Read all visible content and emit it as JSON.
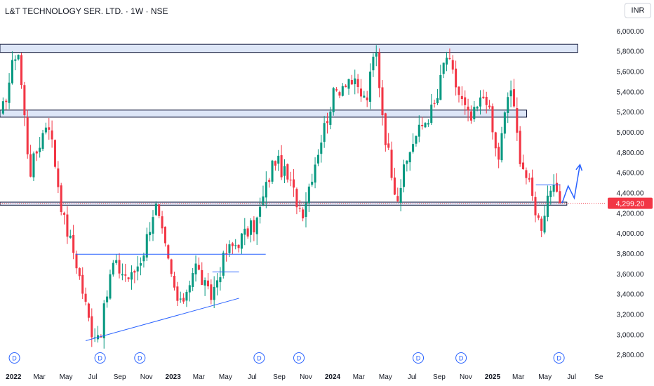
{
  "header": {
    "symbol_title": "L&T TECHNOLOGY SER. LTD. · 1W · NSE",
    "currency": "INR"
  },
  "colors": {
    "up": "#089981",
    "down": "#f23645",
    "zone_fill": "#dde6f7",
    "zone_stroke": "#0d1538",
    "trendline": "#2962ff",
    "last_price": "#f23645",
    "dividend_marker": "#2962ff"
  },
  "chart_data": {
    "type": "candlestick",
    "instrument": "L&T TECHNOLOGY SER. LTD.",
    "interval": "1W",
    "exchange": "NSE",
    "y_range": [
      2770,
      6100
    ],
    "y_ticks": [
      2800,
      3000,
      3200,
      3400,
      3600,
      3800,
      4000,
      4200,
      4400,
      4600,
      4800,
      5000,
      5200,
      5400,
      5600,
      5800,
      6000
    ],
    "y_tick_labels": [
      "2,800.00",
      "3,000.00",
      "3,200.00",
      "3,400.00",
      "3,600.00",
      "3,800.00",
      "4,000.00",
      "4,200.00",
      "4,400.00",
      "4,600.00",
      "4,800.00",
      "5,000.00",
      "5,200.00",
      "5,400.00",
      "5,600.00",
      "5,800.00",
      "6,000.00"
    ],
    "x_range": [
      "2021-12-01",
      "2025-09-15"
    ],
    "x_ticks": [
      {
        "date": "2022-01-01",
        "label": "2022",
        "bold": true
      },
      {
        "date": "2022-03-01",
        "label": "Mar",
        "bold": false
      },
      {
        "date": "2022-05-01",
        "label": "May",
        "bold": false
      },
      {
        "date": "2022-07-01",
        "label": "Jul",
        "bold": false
      },
      {
        "date": "2022-09-01",
        "label": "Sep",
        "bold": false
      },
      {
        "date": "2022-11-01",
        "label": "Nov",
        "bold": false
      },
      {
        "date": "2023-01-01",
        "label": "2023",
        "bold": true
      },
      {
        "date": "2023-03-01",
        "label": "Mar",
        "bold": false
      },
      {
        "date": "2023-05-01",
        "label": "May",
        "bold": false
      },
      {
        "date": "2023-07-01",
        "label": "Jul",
        "bold": false
      },
      {
        "date": "2023-09-01",
        "label": "Sep",
        "bold": false
      },
      {
        "date": "2023-11-01",
        "label": "Nov",
        "bold": false
      },
      {
        "date": "2024-01-01",
        "label": "2024",
        "bold": true
      },
      {
        "date": "2024-03-01",
        "label": "Mar",
        "bold": false
      },
      {
        "date": "2024-05-01",
        "label": "May",
        "bold": false
      },
      {
        "date": "2024-07-01",
        "label": "Jul",
        "bold": false
      },
      {
        "date": "2024-09-01",
        "label": "Sep",
        "bold": false
      },
      {
        "date": "2024-11-01",
        "label": "Nov",
        "bold": false
      },
      {
        "date": "2025-01-01",
        "label": "2025",
        "bold": true
      },
      {
        "date": "2025-03-01",
        "label": "Mar",
        "bold": false
      },
      {
        "date": "2025-05-01",
        "label": "May",
        "bold": false
      },
      {
        "date": "2025-07-01",
        "label": "Jul",
        "bold": false
      },
      {
        "date": "2025-09-01",
        "label": "Se",
        "bold": false
      }
    ],
    "key_points": [
      {
        "date": "2021-12-01",
        "close": 5100
      },
      {
        "date": "2022-01-10",
        "close": 5880
      },
      {
        "date": "2022-02-07",
        "close": 4600
      },
      {
        "date": "2022-03-21",
        "close": 5150
      },
      {
        "date": "2022-04-25",
        "close": 4150
      },
      {
        "date": "2022-05-23",
        "close": 3750
      },
      {
        "date": "2022-06-27",
        "close": 3050
      },
      {
        "date": "2022-07-18",
        "close": 3000
      },
      {
        "date": "2022-08-15",
        "close": 3700
      },
      {
        "date": "2022-09-26",
        "close": 3550
      },
      {
        "date": "2022-10-24",
        "close": 3800
      },
      {
        "date": "2022-11-21",
        "close": 4300
      },
      {
        "date": "2022-12-26",
        "close": 3600
      },
      {
        "date": "2023-01-16",
        "close": 3250
      },
      {
        "date": "2023-02-20",
        "close": 3700
      },
      {
        "date": "2023-03-27",
        "close": 3350
      },
      {
        "date": "2023-05-01",
        "close": 3800
      },
      {
        "date": "2023-07-10",
        "close": 4100
      },
      {
        "date": "2023-08-21",
        "close": 4750
      },
      {
        "date": "2023-09-25",
        "close": 4500
      },
      {
        "date": "2023-10-23",
        "close": 4200
      },
      {
        "date": "2023-11-27",
        "close": 4800
      },
      {
        "date": "2024-01-01",
        "close": 5350
      },
      {
        "date": "2024-02-05",
        "close": 5550
      },
      {
        "date": "2024-03-18",
        "close": 5300
      },
      {
        "date": "2024-04-08",
        "close": 5850
      },
      {
        "date": "2024-04-29",
        "close": 5000
      },
      {
        "date": "2024-05-27",
        "close": 4350
      },
      {
        "date": "2024-07-01",
        "close": 4900
      },
      {
        "date": "2024-08-05",
        "close": 5150
      },
      {
        "date": "2024-08-26",
        "close": 5300
      },
      {
        "date": "2024-09-16",
        "close": 5780
      },
      {
        "date": "2024-10-14",
        "close": 5400
      },
      {
        "date": "2024-11-11",
        "close": 5100
      },
      {
        "date": "2024-12-16",
        "close": 5400
      },
      {
        "date": "2025-01-13",
        "close": 4700
      },
      {
        "date": "2025-02-10",
        "close": 5500
      },
      {
        "date": "2025-03-03",
        "close": 4800
      },
      {
        "date": "2025-04-07",
        "close": 4280
      },
      {
        "date": "2025-04-21",
        "close": 4050
      },
      {
        "date": "2025-05-12",
        "close": 4480
      },
      {
        "date": "2025-06-02",
        "close": 4300
      },
      {
        "date": "2025-06-09",
        "close": 4299.2
      }
    ],
    "last_price": 4299.2,
    "last_price_label": "4,299.20",
    "horizontal_zones": [
      {
        "date_start": "2021-12-01",
        "date_end": "2025-07-15",
        "low": 5790,
        "high": 5870
      },
      {
        "date_start": "2021-12-01",
        "date_end": "2025-03-20",
        "low": 5150,
        "high": 5220
      },
      {
        "date_start": "2021-12-01",
        "date_end": "2025-06-20",
        "low": 4280,
        "high": 4310
      }
    ],
    "trend_lines": [
      {
        "start": {
          "date": "2022-05-23",
          "price": 3795
        },
        "end": {
          "date": "2023-08-01",
          "price": 3795
        }
      },
      {
        "start": {
          "date": "2022-06-15",
          "price": 2940
        },
        "end": {
          "date": "2023-06-01",
          "price": 3360
        }
      },
      {
        "start": {
          "date": "2023-04-01",
          "price": 3620
        },
        "end": {
          "date": "2023-06-01",
          "price": 3620
        }
      },
      {
        "start": {
          "date": "2025-04-10",
          "price": 4480
        },
        "end": {
          "date": "2025-06-05",
          "price": 4480
        }
      }
    ],
    "projection_path": [
      {
        "date": "2025-06-09",
        "price": 4300
      },
      {
        "date": "2025-06-23",
        "price": 4470
      },
      {
        "date": "2025-07-07",
        "price": 4350
      },
      {
        "date": "2025-07-20",
        "price": 4680
      }
    ],
    "dividend_markers": [
      {
        "date": "2022-01-03",
        "label": "D"
      },
      {
        "date": "2022-07-18",
        "label": "D"
      },
      {
        "date": "2022-10-17",
        "label": "D"
      },
      {
        "date": "2023-07-17",
        "label": "D"
      },
      {
        "date": "2023-10-16",
        "label": "D"
      },
      {
        "date": "2024-07-15",
        "label": "D"
      },
      {
        "date": "2024-10-21",
        "label": "D"
      },
      {
        "date": "2025-06-02",
        "label": "D"
      }
    ]
  }
}
